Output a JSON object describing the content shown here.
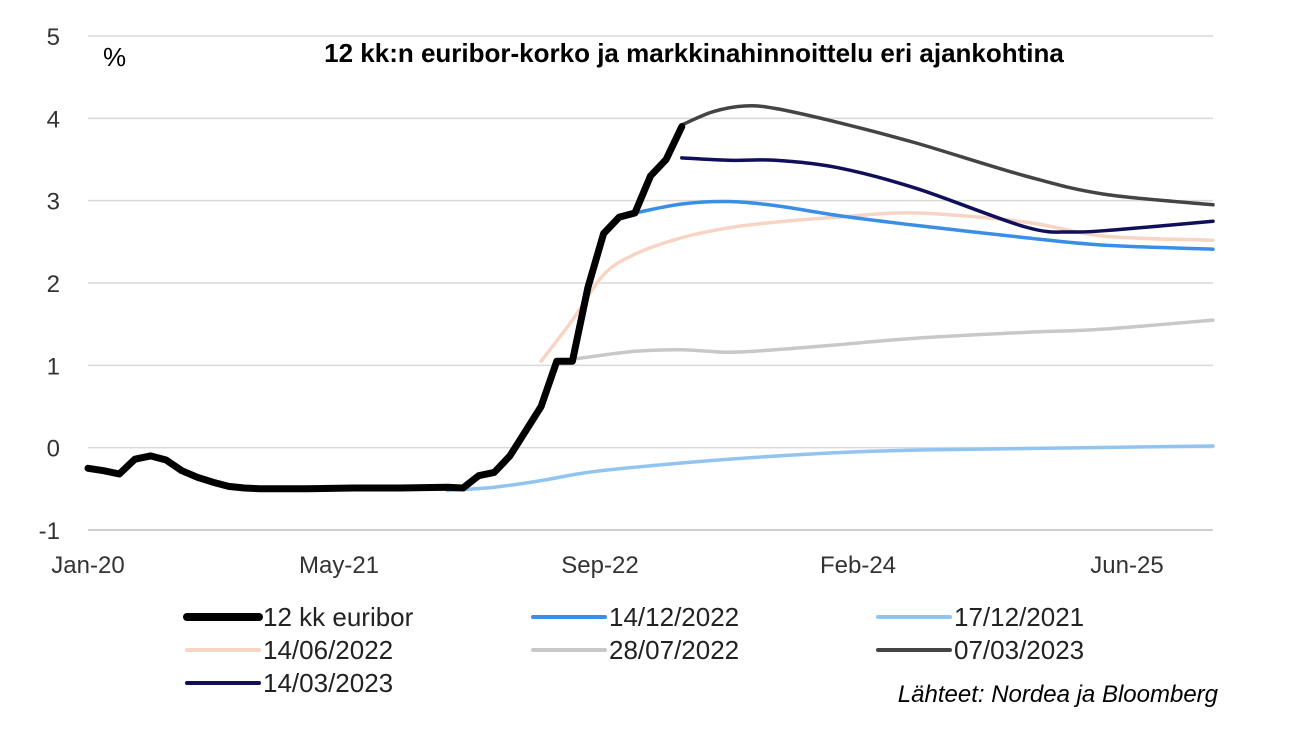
{
  "chart_data": {
    "type": "line",
    "title": "12 kk:n euribor-korko ja markkinahinnoittelu eri ajankohtina",
    "unit_label": "%",
    "source": "Lähteet: Nordea ja Bloomberg",
    "x_ticks": [
      "Jan-20",
      "May-21",
      "Sep-22",
      "Feb-24",
      "Jun-25"
    ],
    "y_ticks": [
      "-1",
      "0",
      "1",
      "2",
      "3",
      "4",
      "5"
    ],
    "xlim": [
      "2020-01",
      "2026-01"
    ],
    "ylim": [
      -1,
      5
    ],
    "grid": "horizontal",
    "legend_position": "bottom",
    "series": [
      {
        "name": "12 kk euribor",
        "color": "#000000",
        "points": [
          [
            "2020-01",
            -0.25
          ],
          [
            "2020-02",
            -0.28
          ],
          [
            "2020-03",
            -0.32
          ],
          [
            "2020-04",
            -0.14
          ],
          [
            "2020-05",
            -0.1
          ],
          [
            "2020-06",
            -0.15
          ],
          [
            "2020-07",
            -0.28
          ],
          [
            "2020-08",
            -0.36
          ],
          [
            "2020-09",
            -0.42
          ],
          [
            "2020-10",
            -0.47
          ],
          [
            "2020-11",
            -0.49
          ],
          [
            "2020-12",
            -0.5
          ],
          [
            "2021-03",
            -0.5
          ],
          [
            "2021-06",
            -0.49
          ],
          [
            "2021-09",
            -0.49
          ],
          [
            "2021-12",
            -0.48
          ],
          [
            "2022-01",
            -0.49
          ],
          [
            "2022-02",
            -0.34
          ],
          [
            "2022-03",
            -0.3
          ],
          [
            "2022-04",
            -0.1
          ],
          [
            "2022-05",
            0.2
          ],
          [
            "2022-06",
            0.5
          ],
          [
            "2022-07",
            1.05
          ],
          [
            "2022-08",
            1.05
          ],
          [
            "2022-09",
            1.95
          ],
          [
            "2022-10",
            2.6
          ],
          [
            "2022-11",
            2.8
          ],
          [
            "2022-12",
            2.85
          ],
          [
            "2023-01",
            3.3
          ],
          [
            "2023-02",
            3.5
          ],
          [
            "2023-03",
            3.9
          ]
        ]
      },
      {
        "name": "14/12/2022",
        "color": "#3a8ee6",
        "points": [
          [
            "2022-12",
            2.85
          ],
          [
            "2023-03",
            2.96
          ],
          [
            "2023-06",
            2.99
          ],
          [
            "2023-09",
            2.94
          ],
          [
            "2024-01",
            2.82
          ],
          [
            "2024-06",
            2.7
          ],
          [
            "2025-01",
            2.55
          ],
          [
            "2025-06",
            2.46
          ],
          [
            "2026-01",
            2.41
          ]
        ]
      },
      {
        "name": "17/12/2021",
        "color": "#92c4f0",
        "points": [
          [
            "2021-12",
            -0.52
          ],
          [
            "2022-03",
            -0.48
          ],
          [
            "2022-06",
            -0.4
          ],
          [
            "2022-09",
            -0.3
          ],
          [
            "2023-01",
            -0.22
          ],
          [
            "2023-06",
            -0.14
          ],
          [
            "2024-01",
            -0.06
          ],
          [
            "2024-06",
            -0.03
          ],
          [
            "2025-01",
            -0.01
          ],
          [
            "2026-01",
            0.02
          ]
        ]
      },
      {
        "name": "14/06/2022",
        "color": "#f7d4c4",
        "points": [
          [
            "2022-06",
            1.05
          ],
          [
            "2022-08",
            1.55
          ],
          [
            "2022-10",
            2.1
          ],
          [
            "2022-12",
            2.35
          ],
          [
            "2023-03",
            2.55
          ],
          [
            "2023-06",
            2.67
          ],
          [
            "2023-09",
            2.74
          ],
          [
            "2024-01",
            2.8
          ],
          [
            "2024-06",
            2.85
          ],
          [
            "2025-01",
            2.74
          ],
          [
            "2025-06",
            2.57
          ],
          [
            "2026-01",
            2.52
          ]
        ]
      },
      {
        "name": "28/07/2022",
        "color": "#c8c8c8",
        "points": [
          [
            "2022-07",
            1.05
          ],
          [
            "2022-09",
            1.1
          ],
          [
            "2022-12",
            1.17
          ],
          [
            "2023-03",
            1.19
          ],
          [
            "2023-06",
            1.16
          ],
          [
            "2023-09",
            1.19
          ],
          [
            "2024-01",
            1.25
          ],
          [
            "2024-06",
            1.33
          ],
          [
            "2025-01",
            1.4
          ],
          [
            "2025-06",
            1.44
          ],
          [
            "2026-01",
            1.55
          ]
        ]
      },
      {
        "name": "07/03/2023",
        "color": "#444444",
        "points": [
          [
            "2023-03",
            3.92
          ],
          [
            "2023-05",
            4.08
          ],
          [
            "2023-07",
            4.15
          ],
          [
            "2023-09",
            4.12
          ],
          [
            "2024-01",
            3.95
          ],
          [
            "2024-06",
            3.7
          ],
          [
            "2025-01",
            3.3
          ],
          [
            "2025-06",
            3.08
          ],
          [
            "2026-01",
            2.95
          ]
        ]
      },
      {
        "name": "14/03/2023",
        "color": "#0f0f5a",
        "points": [
          [
            "2023-03",
            3.52
          ],
          [
            "2023-06",
            3.49
          ],
          [
            "2023-09",
            3.49
          ],
          [
            "2024-01",
            3.4
          ],
          [
            "2024-06",
            3.15
          ],
          [
            "2025-01",
            2.68
          ],
          [
            "2025-04",
            2.62
          ],
          [
            "2025-07",
            2.65
          ],
          [
            "2026-01",
            2.75
          ]
        ]
      }
    ]
  }
}
